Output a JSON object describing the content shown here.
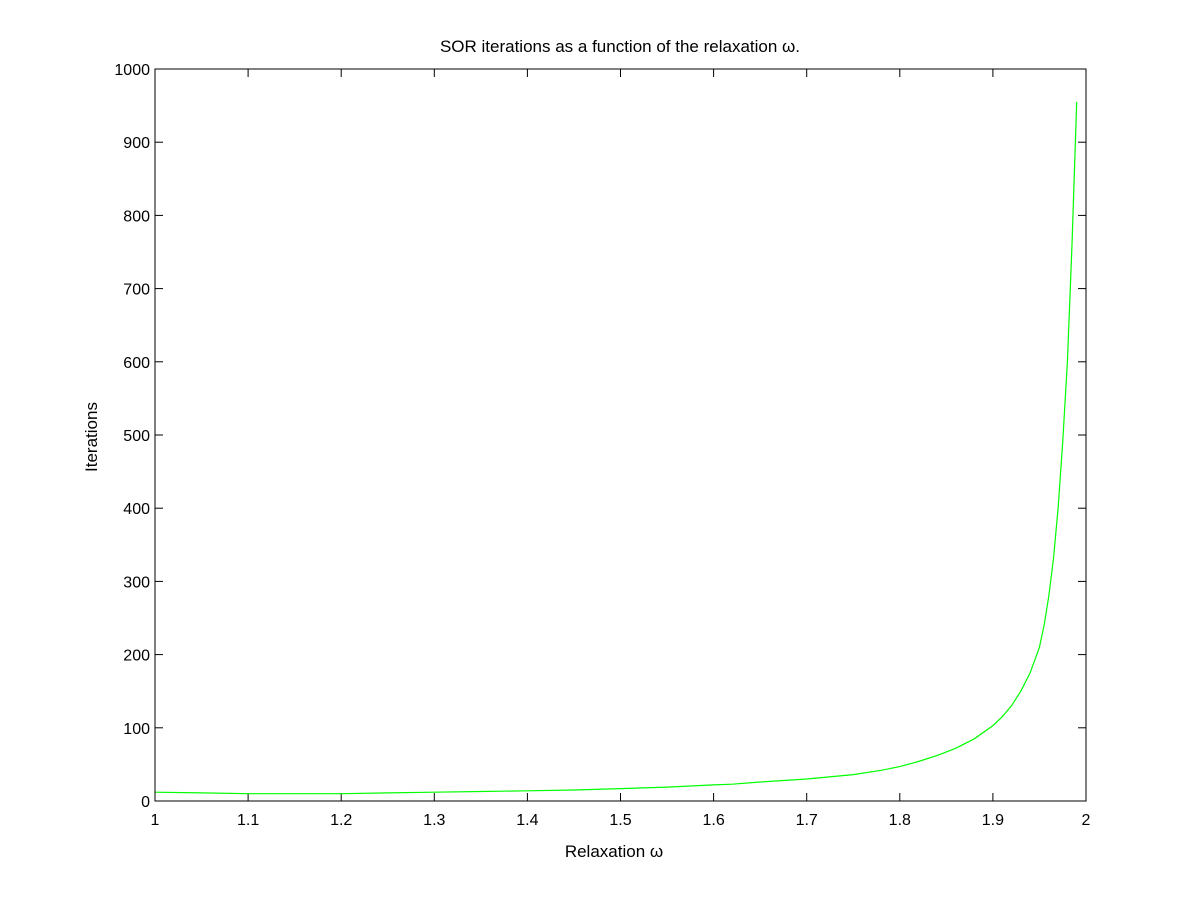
{
  "chart_data": {
    "type": "line",
    "title": "SOR iterations as a function of the relaxation ω.",
    "xlabel": "Relaxation ω",
    "ylabel": "Iterations",
    "xlim": [
      1,
      2
    ],
    "ylim": [
      0,
      1000
    ],
    "xticks": [
      1,
      1.1,
      1.2,
      1.3,
      1.4,
      1.5,
      1.6,
      1.7,
      1.8,
      1.9,
      2
    ],
    "yticks": [
      0,
      100,
      200,
      300,
      400,
      500,
      600,
      700,
      800,
      900,
      1000
    ],
    "grid": false,
    "series": [
      {
        "color": "#00ff00",
        "x": [
          1.0,
          1.05,
          1.1,
          1.15,
          1.2,
          1.25,
          1.3,
          1.35,
          1.4,
          1.45,
          1.5,
          1.55,
          1.6,
          1.62,
          1.65,
          1.7,
          1.75,
          1.78,
          1.8,
          1.82,
          1.84,
          1.86,
          1.88,
          1.9,
          1.91,
          1.92,
          1.93,
          1.94,
          1.95,
          1.955,
          1.96,
          1.965,
          1.97,
          1.975,
          1.98,
          1.985,
          1.99
        ],
        "y": [
          12,
          11,
          10,
          10,
          10,
          11,
          12,
          13,
          14,
          15,
          17,
          19,
          22,
          23,
          26,
          30,
          36,
          42,
          47,
          54,
          62,
          72,
          85,
          103,
          115,
          130,
          150,
          175,
          210,
          240,
          280,
          330,
          400,
          490,
          600,
          760,
          955
        ]
      }
    ]
  }
}
